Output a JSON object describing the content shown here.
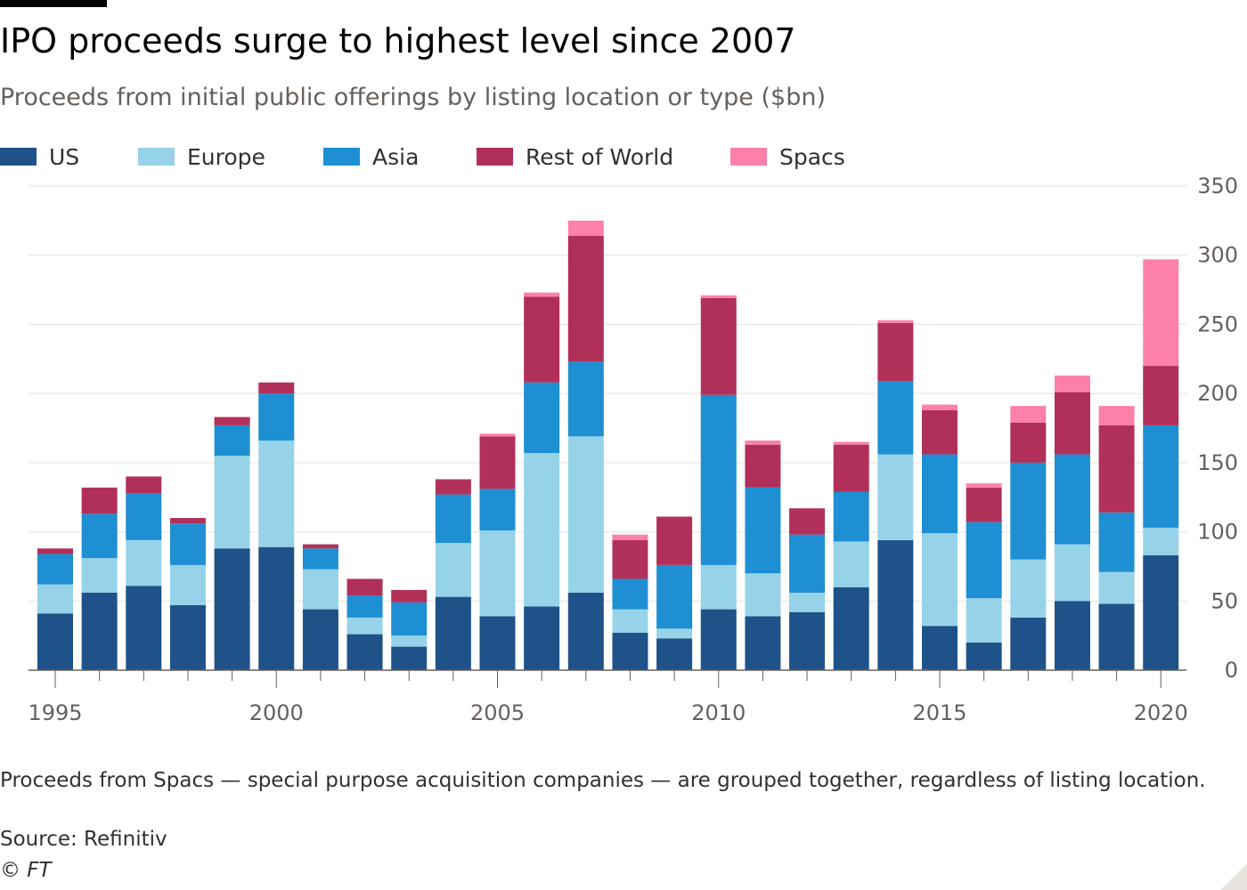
{
  "header": {
    "title": "IPO proceeds surge to highest level since 2007",
    "subtitle": "Proceeds from initial public offerings by listing location or type ($bn)"
  },
  "footer": {
    "note": "Proceeds from Spacs — special purpose acquisition companies — are grouped together, regardless of listing location.",
    "source": "Source: Refinitiv",
    "copyright": "© FT"
  },
  "chart_data": {
    "type": "bar",
    "stacked": true,
    "title": "IPO proceeds surge to highest level since 2007",
    "subtitle": "Proceeds from initial public offerings by listing location or type ($bn)",
    "xlabel": "",
    "ylabel": "",
    "ylim": [
      0,
      350
    ],
    "yticks": [
      0,
      50,
      100,
      150,
      200,
      250,
      300,
      350
    ],
    "y_axis_side": "right",
    "xtick_labels": [
      "1995",
      "2000",
      "2005",
      "2010",
      "2015",
      "2020"
    ],
    "grid": true,
    "legend_position": "top-left",
    "categories": [
      "1995",
      "1996",
      "1997",
      "1998",
      "1999",
      "2000",
      "2001",
      "2002",
      "2003",
      "2004",
      "2005",
      "2006",
      "2007",
      "2008",
      "2009",
      "2010",
      "2011",
      "2012",
      "2013",
      "2014",
      "2015",
      "2016",
      "2017",
      "2018",
      "2019",
      "2020"
    ],
    "series": [
      {
        "name": "US",
        "color": "#1f5289",
        "values": [
          41,
          56,
          61,
          47,
          88,
          89,
          44,
          26,
          17,
          53,
          39,
          46,
          56,
          27,
          23,
          44,
          39,
          42,
          60,
          94,
          32,
          20,
          38,
          50,
          48,
          83
        ]
      },
      {
        "name": "Europe",
        "color": "#96d3e8",
        "values": [
          21,
          25,
          33,
          29,
          67,
          77,
          29,
          12,
          8,
          39,
          62,
          111,
          113,
          17,
          7,
          32,
          31,
          14,
          33,
          62,
          67,
          32,
          42,
          41,
          23,
          20
        ]
      },
      {
        "name": "Asia",
        "color": "#1e8fd2",
        "values": [
          22,
          32,
          34,
          30,
          22,
          34,
          15,
          16,
          24,
          35,
          30,
          51,
          54,
          22,
          46,
          123,
          62,
          42,
          36,
          53,
          57,
          55,
          70,
          65,
          43,
          74
        ]
      },
      {
        "name": "Rest of World",
        "color": "#b1305a",
        "values": [
          4,
          19,
          12,
          4,
          6,
          8,
          3,
          12,
          9,
          11,
          38,
          62,
          91,
          28,
          35,
          70,
          31,
          19,
          34,
          42,
          32,
          25,
          29,
          45,
          63,
          43
        ]
      },
      {
        "name": "Spacs",
        "color": "#fd80a8",
        "values": [
          0,
          0,
          0,
          0,
          0,
          0,
          0,
          0,
          0,
          0,
          2,
          3,
          11,
          4,
          0,
          2,
          3,
          0,
          2,
          2,
          4,
          3,
          12,
          12,
          14,
          77
        ]
      }
    ]
  }
}
